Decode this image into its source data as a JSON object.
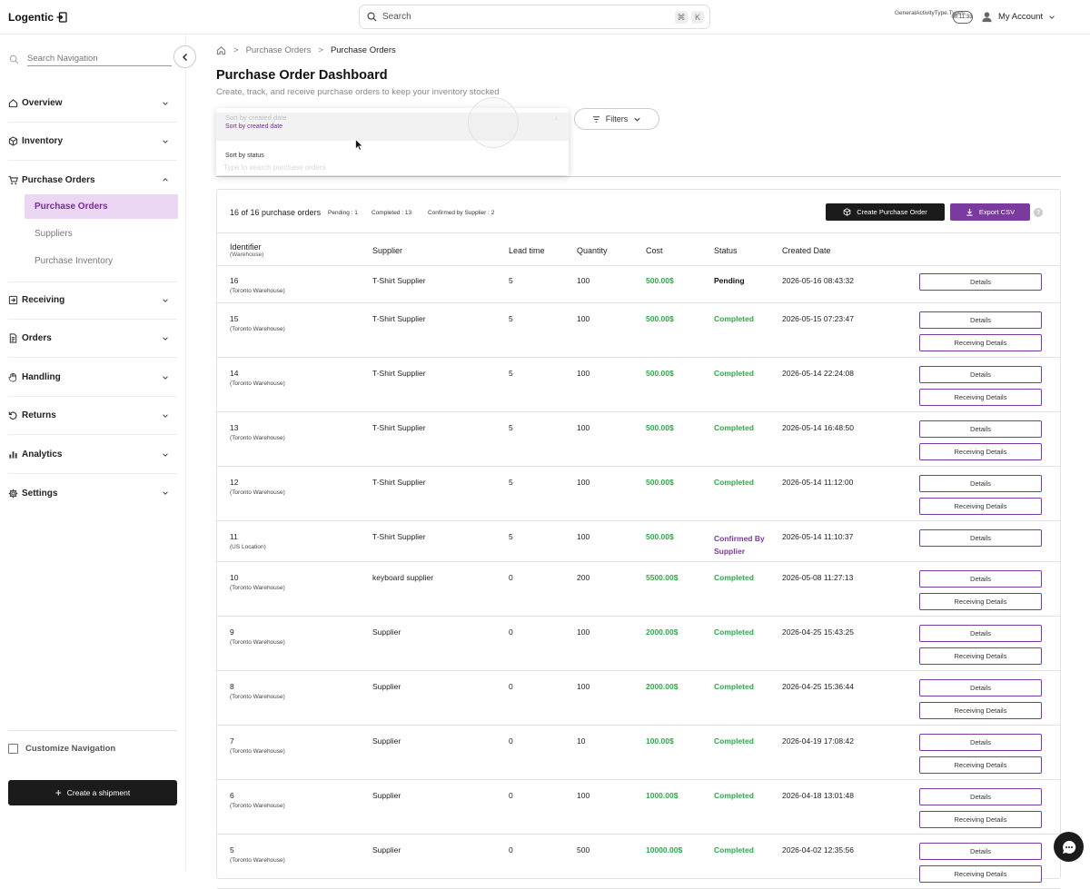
{
  "app": {
    "name": "Logentic"
  },
  "topbar": {
    "search_placeholder": "Search",
    "shortcut_cmd": "⌘",
    "shortcut_key": "K",
    "activity_label": "GeneralActivityType.Types.",
    "timer": "00:11:33",
    "account_label": "My Account"
  },
  "sidebar": {
    "search_placeholder": "Search Navigation",
    "sections": [
      {
        "label": "Overview",
        "icon": "home-icon"
      },
      {
        "label": "Inventory",
        "icon": "box-icon"
      },
      {
        "label": "Purchase Orders",
        "icon": "cart-icon"
      },
      {
        "label": "Receiving",
        "icon": "receive-icon"
      },
      {
        "label": "Orders",
        "icon": "document-icon"
      },
      {
        "label": "Handling",
        "icon": "hand-icon"
      },
      {
        "label": "Returns",
        "icon": "return-icon"
      },
      {
        "label": "Analytics",
        "icon": "bar-chart-icon"
      },
      {
        "label": "Settings",
        "icon": "gear-icon"
      }
    ],
    "subitems": [
      "Purchase Orders",
      "Suppliers",
      "Purchase Inventory"
    ],
    "customize_label": "Customize Navigation",
    "create_shipment_label": "Create a shipment"
  },
  "breadcrumb": {
    "parent": "Purchase Orders",
    "current": "Purchase Orders",
    "sep": ">"
  },
  "page": {
    "title": "Purchase Order Dashboard",
    "subtitle": "Create, track, and receive purchase orders to keep your inventory stocked",
    "filters_label": "Filters"
  },
  "sort_dropdown": {
    "ghost_label": "Sort by created date",
    "options": [
      "Sort by created date",
      "Sort by status"
    ],
    "search_ghost": "Type to search purchase orders"
  },
  "summary": {
    "count_text": "16 of 16 purchase orders",
    "pending": "Pending : 1",
    "completed": "Completed : 13",
    "confirmed": "Confirmed by Supplier : 2",
    "create_label": "Create Purchase Order",
    "export_label": "Export CSV",
    "help": "?"
  },
  "table": {
    "headers": [
      "Identifier",
      "Supplier",
      "Lead time",
      "Quantity",
      "Cost",
      "Status",
      "Created Date"
    ],
    "identifier_sub": "(Warehouse)",
    "details_label": "Details",
    "receiving_label": "Receiving Details",
    "rows": [
      {
        "id": "16",
        "loc": "(Toronto Warehouse)",
        "supplier": "T-Shirt Supplier",
        "lead": "5",
        "qty": "100",
        "cost": "500.00$",
        "status": "Pending",
        "date": "2026-05-16 08:43:32"
      },
      {
        "id": "15",
        "loc": "(Toronto Warehouse)",
        "supplier": "T-Shirt Supplier",
        "lead": "5",
        "qty": "100",
        "cost": "500.00$",
        "status": "Completed",
        "date": "2026-05-15 07:23:47"
      },
      {
        "id": "14",
        "loc": "(Toronto Warehouse)",
        "supplier": "T-Shirt Supplier",
        "lead": "5",
        "qty": "100",
        "cost": "500.00$",
        "status": "Completed",
        "date": "2026-05-14 22:24:08"
      },
      {
        "id": "13",
        "loc": "(Toronto Warehouse)",
        "supplier": "T-Shirt Supplier",
        "lead": "5",
        "qty": "100",
        "cost": "500.00$",
        "status": "Completed",
        "date": "2026-05-14 16:48:50"
      },
      {
        "id": "12",
        "loc": "(Toronto Warehouse)",
        "supplier": "T-Shirt Supplier",
        "lead": "5",
        "qty": "100",
        "cost": "500.00$",
        "status": "Completed",
        "date": "2026-05-14 11:12:00"
      },
      {
        "id": "11",
        "loc": "(US Location)",
        "supplier": "T-Shirt Supplier",
        "lead": "5",
        "qty": "100",
        "cost": "500.00$",
        "status": "Confirmed By Supplier",
        "date": "2026-05-14 11:10:37"
      },
      {
        "id": "10",
        "loc": "(Toronto Warehouse)",
        "supplier": "keyboard supplier",
        "lead": "0",
        "qty": "200",
        "cost": "5500.00$",
        "status": "Completed",
        "date": "2026-05-08 11:27:13"
      },
      {
        "id": "9",
        "loc": "(Toronto Warehouse)",
        "supplier": "Supplier",
        "lead": "0",
        "qty": "100",
        "cost": "2000.00$",
        "status": "Completed",
        "date": "2026-04-25 15:43:25"
      },
      {
        "id": "8",
        "loc": "(Toronto Warehouse)",
        "supplier": "Supplier",
        "lead": "0",
        "qty": "100",
        "cost": "2000.00$",
        "status": "Completed",
        "date": "2026-04-25 15:36:44"
      },
      {
        "id": "7",
        "loc": "(Toronto Warehouse)",
        "supplier": "Supplier",
        "lead": "0",
        "qty": "10",
        "cost": "100.00$",
        "status": "Completed",
        "date": "2026-04-19 17:08:42"
      },
      {
        "id": "6",
        "loc": "(Toronto Warehouse)",
        "supplier": "Supplier",
        "lead": "0",
        "qty": "100",
        "cost": "1000.00$",
        "status": "Completed",
        "date": "2026-04-18 13:01:48"
      },
      {
        "id": "5",
        "loc": "(Toronto Warehouse)",
        "supplier": "Supplier",
        "lead": "0",
        "qty": "500",
        "cost": "10000.00$",
        "status": "Completed",
        "date": "2026-04-02 12:35:56"
      }
    ]
  },
  "colors": {
    "accent": "#7a3a9e",
    "success": "#2fa84a",
    "dark": "#1b1b1b"
  }
}
